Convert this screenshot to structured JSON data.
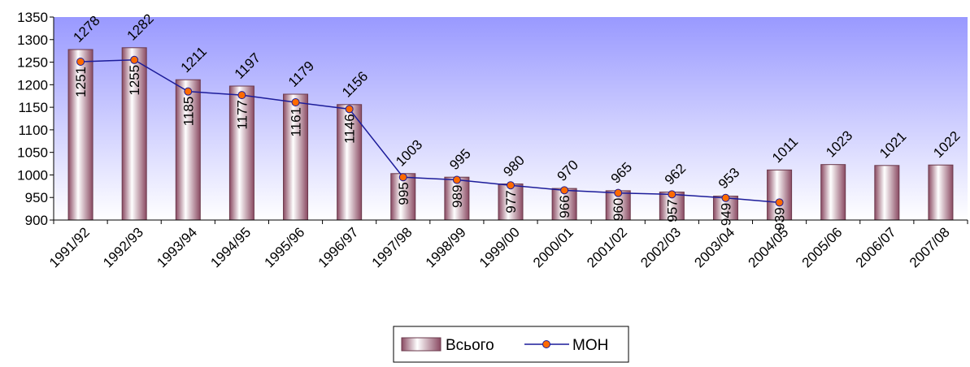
{
  "chart_data": {
    "type": "bar",
    "categories": [
      "1991/92",
      "1992/93",
      "1993/94",
      "1994/95",
      "1995/96",
      "1996/97",
      "1997/98",
      "1998/99",
      "1999/00",
      "2000/01",
      "2001/02",
      "2002/03",
      "2003/04",
      "2004/05",
      "2005/06",
      "2006/07",
      "2007/08"
    ],
    "series": [
      {
        "name": "Всього",
        "type": "bar",
        "values": [
          1278,
          1282,
          1211,
          1197,
          1179,
          1156,
          1003,
          995,
          980,
          970,
          965,
          962,
          953,
          1011,
          1023,
          1021,
          1022
        ]
      },
      {
        "name": "МОН",
        "type": "line",
        "values": [
          1251,
          1255,
          1185,
          1177,
          1161,
          1146,
          995,
          989,
          977,
          966,
          960,
          957,
          949,
          939,
          null,
          null,
          null
        ]
      }
    ],
    "ylim": [
      900,
      1350
    ],
    "y_ticks": [
      900,
      950,
      1000,
      1050,
      1100,
      1150,
      1200,
      1250,
      1300,
      1350
    ],
    "title": "",
    "xlabel": "",
    "ylabel": "",
    "legend_position": "bottom-center",
    "colors": {
      "plot_top": "#9999ff",
      "plot_bottom": "#ffffff",
      "bar_edge": "#6b3a4c",
      "bar_light": "#ffffff",
      "bar_dark": "#8a4a62",
      "line": "#1c1c9a",
      "marker_fill": "#ff6a00",
      "marker_edge": "#1c1c9a"
    }
  }
}
